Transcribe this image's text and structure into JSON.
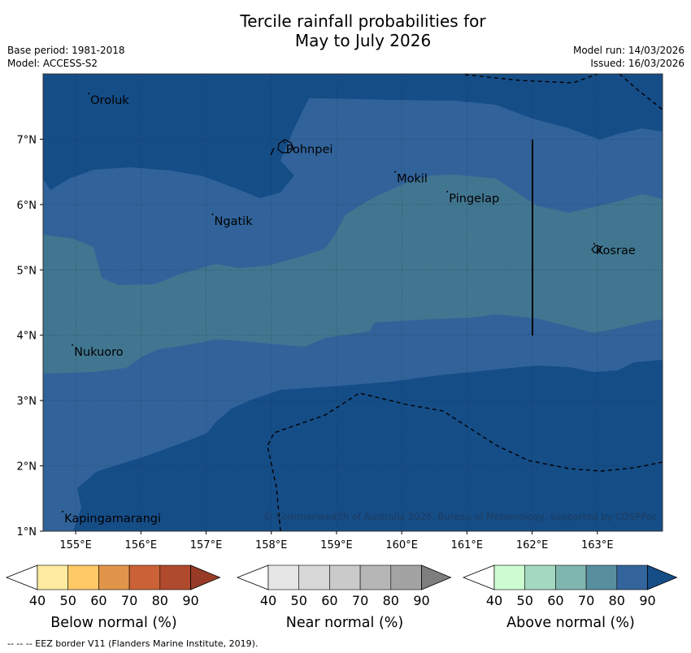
{
  "header": {
    "title_line1": "Tercile rainfall probabilities for",
    "title_line2": "May to July 2026",
    "base_period": "Base period: 1981-2018",
    "model": "Model: ACCESS-S2",
    "model_run": "Model run: 14/03/2026",
    "issued": "Issued: 16/03/2026"
  },
  "map": {
    "lon_range": [
      154.5,
      164.0
    ],
    "lat_range": [
      1.0,
      8.0
    ],
    "lon_ticks": [
      "155°E",
      "156°E",
      "157°E",
      "158°E",
      "159°E",
      "160°E",
      "161°E",
      "162°E",
      "163°E"
    ],
    "lat_ticks": [
      "7°N",
      "6°N",
      "5°N",
      "4°N",
      "3°N",
      "2°N",
      "1°N"
    ],
    "places": [
      {
        "name": "Oroluk",
        "lon": 155.2,
        "lat": 7.6
      },
      {
        "name": "Pohnpei",
        "lon": 158.2,
        "lat": 6.85
      },
      {
        "name": "Mokil",
        "lon": 159.9,
        "lat": 6.4
      },
      {
        "name": "Pingelap",
        "lon": 160.7,
        "lat": 6.1
      },
      {
        "name": "Ngatik",
        "lon": 157.1,
        "lat": 5.75
      },
      {
        "name": "Kosrae",
        "lon": 162.95,
        "lat": 5.3
      },
      {
        "name": "Nukuoro",
        "lon": 154.95,
        "lat": 3.75
      },
      {
        "name": "Kapingamarangi",
        "lon": 154.8,
        "lat": 1.2
      }
    ],
    "copyright": "© Commonwealth of Australia 2026, Bureau of Meteorology, supported by COSPPac",
    "colors": {
      "above_70": "#417690",
      "above_80": "#31639a",
      "above_90": "#154d87"
    }
  },
  "legends": [
    {
      "name": "below",
      "label": "Below normal (%)",
      "ticks": [
        "40",
        "50",
        "60",
        "70",
        "80",
        "90"
      ],
      "colors": [
        "#ffffff",
        "#feeb9f",
        "#fec966",
        "#e0954a",
        "#cb6136",
        "#b04a2c",
        "#973b27"
      ]
    },
    {
      "name": "near",
      "label": "Near normal (%)",
      "ticks": [
        "40",
        "50",
        "60",
        "70",
        "80",
        "90"
      ],
      "colors": [
        "#ffffff",
        "#e6e6e6",
        "#d8d8d8",
        "#cacaca",
        "#b6b6b6",
        "#a3a3a3",
        "#7e7e7e"
      ]
    },
    {
      "name": "above",
      "label": "Above normal (%)",
      "ticks": [
        "40",
        "50",
        "60",
        "70",
        "80",
        "90"
      ],
      "colors": [
        "#ffffff",
        "#ccfcd0",
        "#a4d8c0",
        "#80b6b0",
        "#588f9f",
        "#33649b",
        "#154d87"
      ]
    }
  ],
  "footnote": "--  --  -- EEZ border V11 (Flanders Marine Institute, 2019)."
}
